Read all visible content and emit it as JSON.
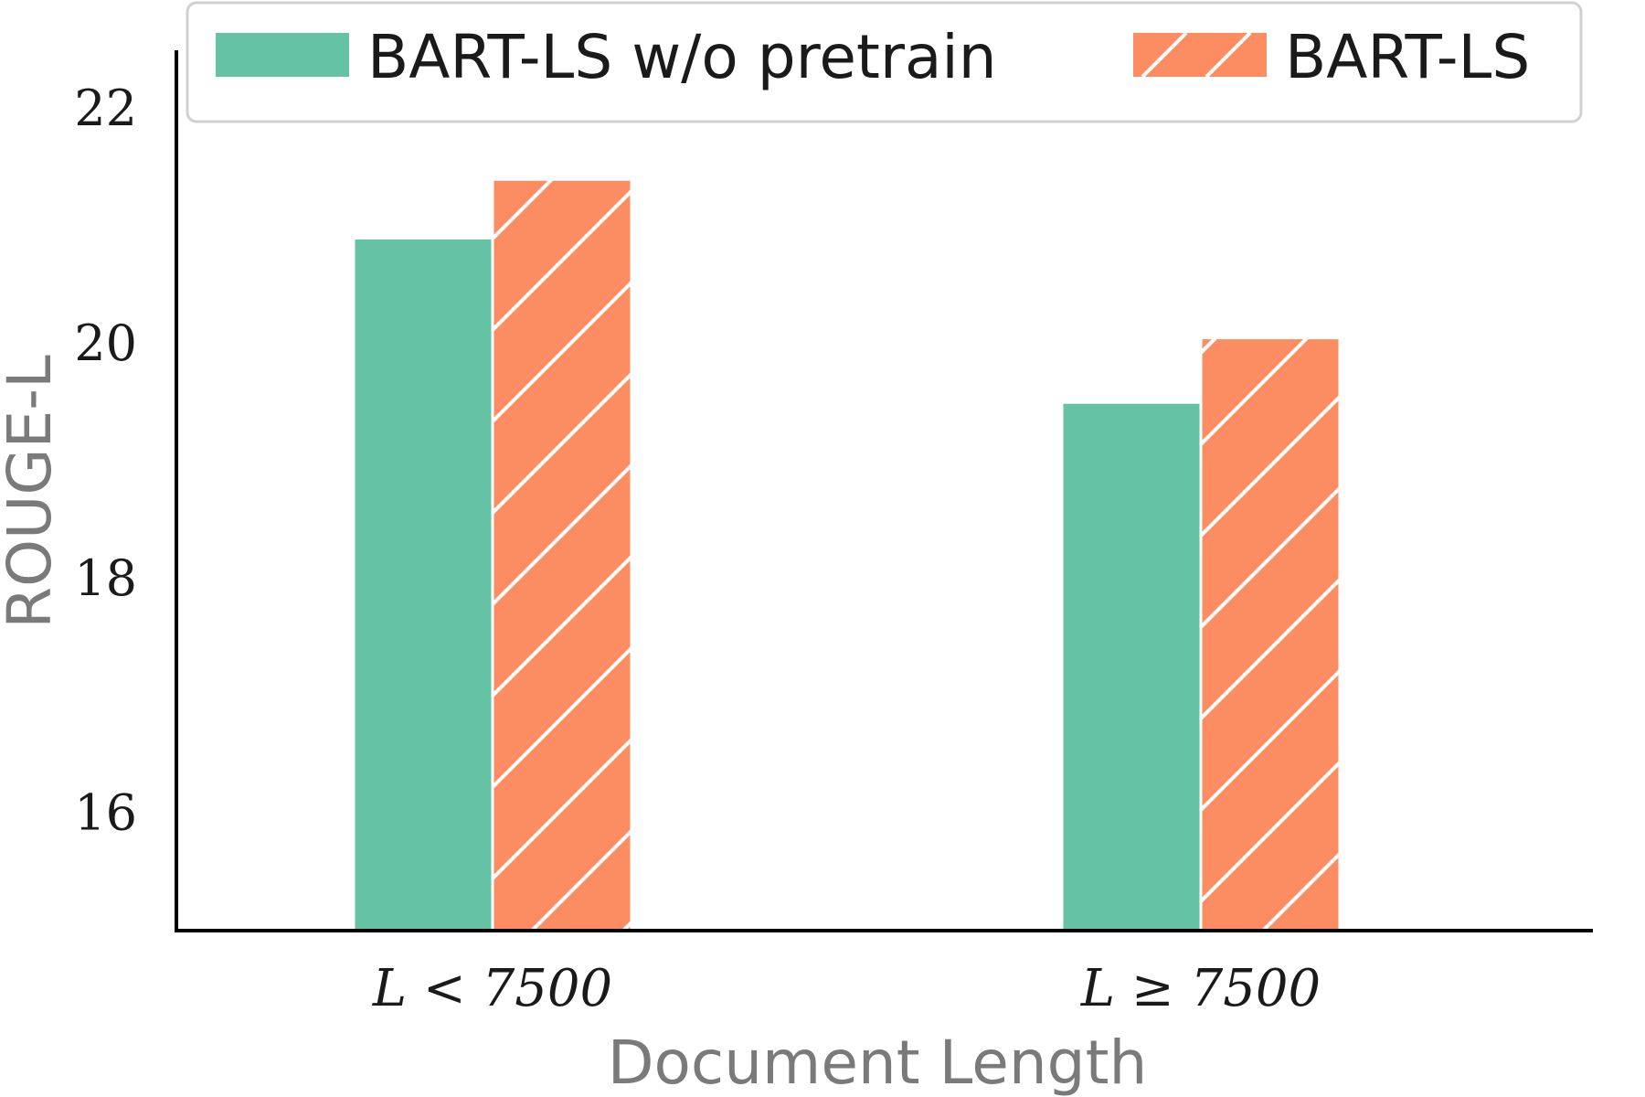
{
  "chart_data": {
    "type": "bar",
    "title": "",
    "xlabel": "Document Length",
    "ylabel": "ROUGE-L",
    "ylim": [
      15,
      22.5
    ],
    "yticks": [
      16,
      18,
      20,
      22
    ],
    "categories": [
      "L < 7500",
      "L ≥ 7500"
    ],
    "series": [
      {
        "name": "BART-LS w/o pretrain",
        "values": [
          20.9,
          19.5
        ],
        "color": "#66c2a5",
        "hatch": "none"
      },
      {
        "name": "BART-LS",
        "values": [
          21.4,
          20.05
        ],
        "color": "#fc8d62",
        "hatch": "diagonal"
      }
    ],
    "legend_position": "top",
    "grid": false
  }
}
